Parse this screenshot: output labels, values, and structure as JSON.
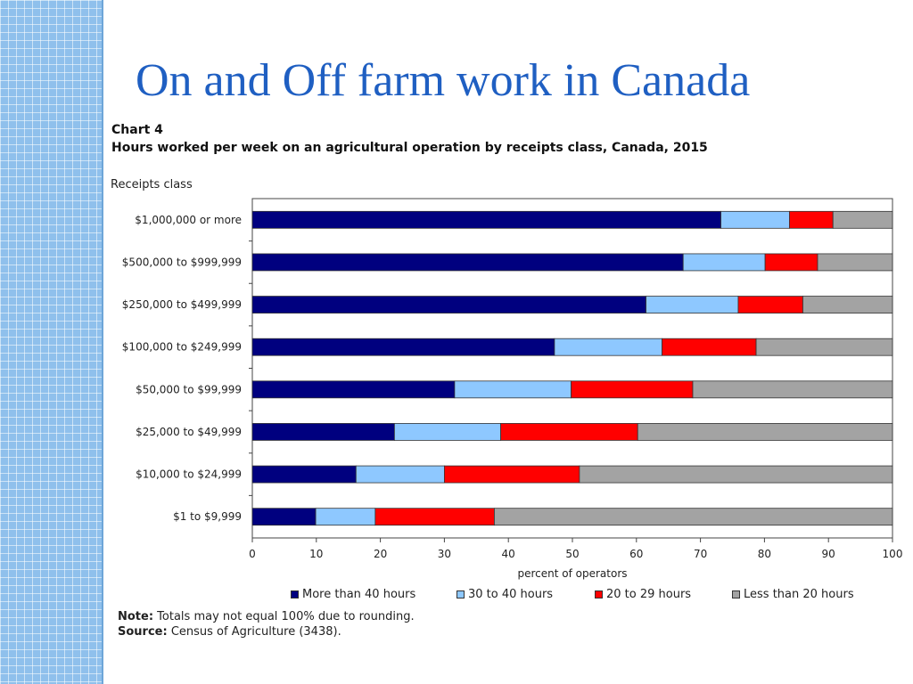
{
  "slide": {
    "title": "On and Off farm work in Canada"
  },
  "chart_data": {
    "type": "bar",
    "orientation": "horizontal",
    "stacked": true,
    "heading": "Chart 4",
    "title": "Hours worked per week on an agricultural  operation by receipts class, Canada, 2015",
    "ylabel": "Receipts class",
    "xlabel": "percent of operators",
    "xlim": [
      0,
      100
    ],
    "xticks": [
      0,
      10,
      20,
      30,
      40,
      50,
      60,
      70,
      80,
      90,
      100
    ],
    "categories": [
      "$1,000,000 or more",
      "$500,000 to $999,999",
      "$250,000 to $499,999",
      "$100,000 to $249,999",
      "$50,000 to $99,999",
      "$25,000 to $49,999",
      "$10,000 to $24,999",
      "$1 to $9,999"
    ],
    "series": [
      {
        "name": "More than 40 hours",
        "color": "#00007f",
        "values": [
          73.2,
          67.3,
          61.5,
          47.2,
          31.6,
          22.2,
          16.2,
          9.9
        ]
      },
      {
        "name": "30 to 40 hours",
        "color": "#8ec8ff",
        "values": [
          10.7,
          12.8,
          14.4,
          16.8,
          18.2,
          16.6,
          13.8,
          9.3
        ]
      },
      {
        "name": "20 to 29 hours",
        "color": "#ff0000",
        "values": [
          6.8,
          8.2,
          10.1,
          14.7,
          19.0,
          21.4,
          21.1,
          18.6
        ]
      },
      {
        "name": "Less than 20 hours",
        "color": "#a3a3a3",
        "values": [
          9.3,
          11.7,
          14.0,
          21.3,
          31.2,
          39.8,
          48.9,
          62.2
        ]
      }
    ],
    "legend_position": "bottom",
    "grid": false
  },
  "footnotes": {
    "note_label": "Note:",
    "note_text": " Totals may not equal 100% due to rounding.",
    "source_label": "Source:",
    "source_text": " Census of Agriculture (3438)."
  }
}
